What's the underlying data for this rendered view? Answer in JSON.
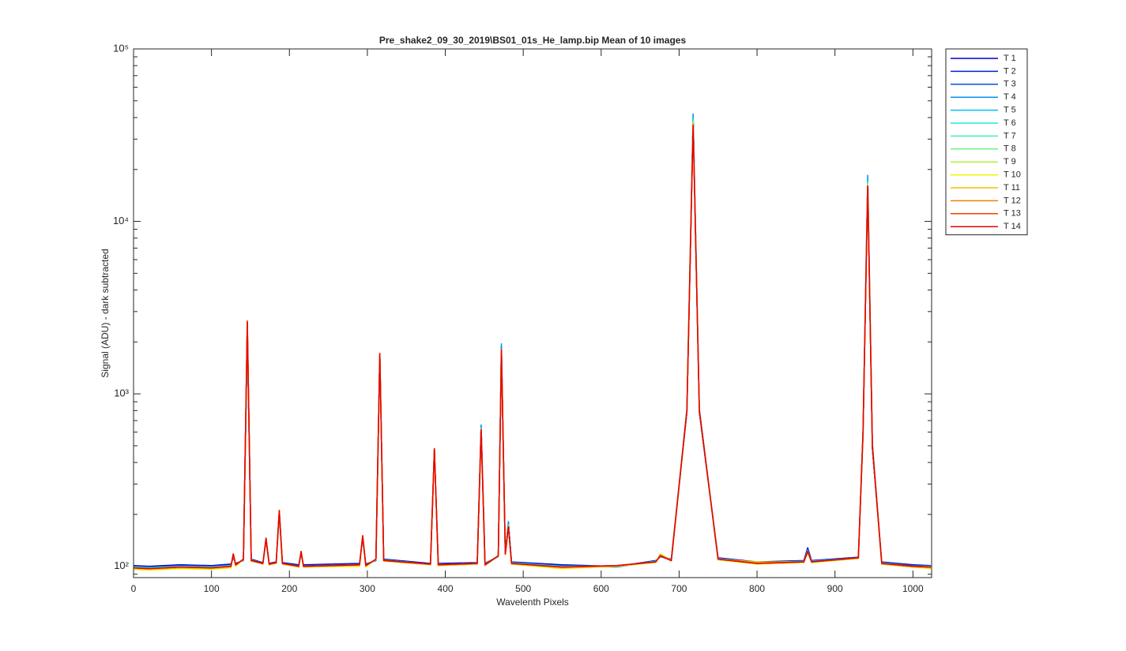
{
  "chart_data": {
    "type": "line",
    "title": "Pre_shake2_09_30_2019\\BS01_01s_He_lamp.bip  Mean of 10 images",
    "xlabel": "Wavelenth Pixels",
    "ylabel": "Signal (ADU) - dark subtracted",
    "yscale": "log",
    "grid": false,
    "legend_location": "east-outside",
    "xlim": [
      0,
      1024
    ],
    "xticks": [
      0,
      100,
      200,
      300,
      400,
      500,
      600,
      700,
      800,
      900,
      1000
    ],
    "ylim": [
      86,
      100000
    ],
    "yticks": [
      {
        "value": 100,
        "label": "10²"
      },
      {
        "value": 1000,
        "label": "10³"
      },
      {
        "value": 10000,
        "label": "10⁴"
      },
      {
        "value": 100000,
        "label": "10⁵"
      }
    ],
    "x": [
      0,
      20,
      60,
      100,
      125,
      128,
      131,
      141,
      146,
      151,
      166,
      170,
      174,
      183,
      187,
      191,
      212,
      215,
      218,
      290,
      294,
      298,
      311,
      316,
      321,
      381,
      386,
      391,
      441,
      446,
      451,
      468,
      472,
      477,
      481,
      485,
      550,
      620,
      670,
      676,
      690,
      710,
      718,
      726,
      750,
      800,
      860,
      865,
      870,
      930,
      936,
      942,
      948,
      960,
      1000,
      1023
    ],
    "series": [
      {
        "name": "T 1",
        "color": "#0000c8",
        "values": [
          101,
          100,
          102,
          101,
          103,
          112,
          104,
          108,
          2300,
          110,
          105,
          140,
          104,
          106,
          200,
          105,
          102,
          118,
          102,
          104,
          145,
          103,
          108,
          1650,
          110,
          104,
          470,
          104,
          105,
          640,
          104,
          114,
          1850,
          120,
          180,
          106,
          102,
          100,
          108,
          114,
          110,
          780,
          39000,
          780,
          112,
          106,
          108,
          128,
          108,
          113,
          580,
          17000,
          480,
          106,
          102,
          101
        ]
      },
      {
        "name": "T 2",
        "color": "#0020d8",
        "values": [
          100,
          99,
          101,
          100,
          102,
          114,
          103,
          109,
          2350,
          109,
          104,
          142,
          103,
          105,
          205,
          104,
          101,
          119,
          101,
          103,
          147,
          102,
          109,
          1660,
          109,
          103,
          472,
          103,
          104,
          645,
          103,
          114,
          1860,
          119,
          178,
          105,
          101,
          100,
          107,
          114,
          109,
          785,
          39500,
          785,
          111,
          105,
          107,
          126,
          107,
          112,
          585,
          17200,
          485,
          105,
          101,
          100
        ]
      },
      {
        "name": "T 3",
        "color": "#0050e0",
        "values": [
          100,
          99,
          100,
          100,
          101,
          115,
          103,
          109,
          2400,
          109,
          104,
          143,
          103,
          105,
          206,
          104,
          101,
          120,
          101,
          103,
          148,
          102,
          109,
          1680,
          109,
          103,
          475,
          103,
          104,
          650,
          103,
          114,
          1880,
          119,
          178,
          105,
          100,
          100,
          107,
          114,
          109,
          790,
          40000,
          790,
          111,
          105,
          107,
          125,
          107,
          112,
          590,
          17500,
          490,
          105,
          101,
          100
        ]
      },
      {
        "name": "T 4",
        "color": "#0090f0",
        "values": [
          99,
          98,
          100,
          99,
          101,
          116,
          102,
          109,
          2450,
          109,
          104,
          144,
          103,
          105,
          207,
          104,
          100,
          120,
          100,
          102,
          148,
          101,
          109,
          1700,
          109,
          103,
          478,
          102,
          104,
          660,
          103,
          115,
          1950,
          119,
          182,
          105,
          100,
          99,
          107,
          114,
          109,
          820,
          42000,
          820,
          111,
          105,
          107,
          124,
          107,
          112,
          620,
          18500,
          520,
          105,
          100,
          100
        ]
      },
      {
        "name": "T 5",
        "color": "#00c0f0",
        "values": [
          99,
          98,
          100,
          99,
          101,
          116,
          102,
          109,
          2450,
          108,
          104,
          144,
          103,
          105,
          207,
          104,
          100,
          120,
          100,
          102,
          148,
          101,
          109,
          1690,
          108,
          103,
          476,
          102,
          104,
          640,
          102,
          114,
          1820,
          118,
          175,
          105,
          100,
          100,
          107,
          116,
          109,
          800,
          40000,
          800,
          111,
          105,
          107,
          123,
          107,
          112,
          600,
          17500,
          500,
          105,
          100,
          100
        ]
      },
      {
        "name": "T 6",
        "color": "#20e8e0",
        "values": [
          99,
          98,
          100,
          99,
          101,
          117,
          102,
          109,
          2500,
          108,
          104,
          144,
          103,
          105,
          208,
          104,
          100,
          121,
          100,
          102,
          149,
          101,
          109,
          1690,
          108,
          103,
          477,
          102,
          104,
          630,
          102,
          114,
          1810,
          118,
          174,
          104,
          100,
          100,
          106,
          116,
          108,
          800,
          39000,
          800,
          110,
          105,
          106,
          122,
          106,
          112,
          600,
          17000,
          500,
          104,
          100,
          100
        ]
      },
      {
        "name": "T 7",
        "color": "#40f0b0",
        "values": [
          98,
          97,
          99,
          98,
          100,
          117,
          102,
          109,
          2500,
          108,
          104,
          145,
          103,
          105,
          208,
          104,
          100,
          121,
          100,
          102,
          149,
          101,
          109,
          1700,
          108,
          103,
          478,
          102,
          104,
          630,
          102,
          115,
          1800,
          118,
          173,
          104,
          99,
          101,
          106,
          118,
          108,
          800,
          38500,
          800,
          110,
          104,
          106,
          122,
          106,
          112,
          600,
          16800,
          500,
          104,
          100,
          99
        ]
      },
      {
        "name": "T 8",
        "color": "#70f080",
        "values": [
          98,
          97,
          99,
          98,
          100,
          117,
          102,
          110,
          2550,
          108,
          104,
          145,
          103,
          105,
          209,
          104,
          100,
          121,
          100,
          102,
          150,
          101,
          110,
          1700,
          108,
          103,
          479,
          102,
          104,
          625,
          102,
          115,
          1800,
          118,
          172,
          104,
          99,
          101,
          106,
          118,
          108,
          800,
          38000,
          800,
          110,
          104,
          106,
          122,
          106,
          112,
          600,
          16600,
          500,
          104,
          100,
          99
        ]
      },
      {
        "name": "T 9",
        "color": "#b0f040",
        "values": [
          97,
          96,
          98,
          97,
          99,
          117,
          101,
          110,
          2550,
          108,
          103,
          145,
          102,
          104,
          209,
          103,
          99,
          121,
          99,
          101,
          150,
          100,
          110,
          1700,
          108,
          102,
          480,
          101,
          103,
          620,
          101,
          115,
          1800,
          117,
          171,
          103,
          98,
          100,
          106,
          118,
          108,
          800,
          37500,
          800,
          110,
          104,
          106,
          120,
          106,
          111,
          600,
          16500,
          500,
          103,
          99,
          98
        ]
      },
      {
        "name": "T 10",
        "color": "#f0f000",
        "values": [
          96,
          95,
          97,
          96,
          98,
          117,
          100,
          110,
          2600,
          107,
          103,
          145,
          102,
          104,
          210,
          103,
          99,
          122,
          99,
          100,
          150,
          99,
          110,
          1700,
          107,
          102,
          480,
          101,
          103,
          620,
          101,
          115,
          1800,
          117,
          171,
          103,
          97,
          100,
          105,
          118,
          107,
          800,
          37000,
          800,
          109,
          103,
          105,
          120,
          105,
          111,
          600,
          16300,
          500,
          103,
          99,
          97
        ]
      },
      {
        "name": "T 11",
        "color": "#f0c000",
        "values": [
          97,
          96,
          98,
          97,
          99,
          118,
          101,
          110,
          2600,
          108,
          103,
          145,
          102,
          104,
          210,
          103,
          99,
          122,
          99,
          101,
          150,
          100,
          110,
          1700,
          108,
          102,
          480,
          101,
          103,
          620,
          101,
          115,
          1800,
          117,
          170,
          103,
          98,
          100,
          106,
          117,
          108,
          800,
          36800,
          800,
          110,
          106,
          106,
          121,
          106,
          111,
          600,
          16200,
          500,
          103,
          99,
          98
        ]
      },
      {
        "name": "T 12",
        "color": "#f08000",
        "values": [
          98,
          97,
          99,
          98,
          100,
          118,
          102,
          110,
          2650,
          108,
          104,
          145,
          103,
          105,
          210,
          104,
          100,
          122,
          100,
          102,
          150,
          101,
          110,
          1700,
          108,
          103,
          480,
          102,
          104,
          620,
          102,
          115,
          1800,
          118,
          170,
          104,
          99,
          101,
          106,
          116,
          108,
          800,
          36500,
          800,
          110,
          104,
          106,
          122,
          106,
          112,
          600,
          16100,
          500,
          104,
          100,
          99
        ]
      },
      {
        "name": "T 13",
        "color": "#f04000",
        "values": [
          98,
          97,
          99,
          98,
          100,
          118,
          102,
          110,
          2650,
          108,
          104,
          146,
          103,
          105,
          211,
          104,
          100,
          122,
          100,
          102,
          151,
          101,
          110,
          1720,
          108,
          103,
          482,
          102,
          104,
          620,
          102,
          115,
          1800,
          118,
          170,
          104,
          99,
          101,
          106,
          115,
          108,
          800,
          36200,
          800,
          110,
          104,
          106,
          122,
          106,
          112,
          600,
          16000,
          500,
          104,
          100,
          99
        ]
      },
      {
        "name": "T 14",
        "color": "#e80000",
        "values": [
          98,
          97,
          99,
          98,
          100,
          118,
          102,
          110,
          2600,
          108,
          104,
          145,
          103,
          105,
          210,
          104,
          100,
          122,
          100,
          102,
          150,
          101,
          110,
          1700,
          108,
          103,
          480,
          102,
          104,
          620,
          102,
          115,
          1800,
          118,
          170,
          104,
          99,
          101,
          106,
          115,
          108,
          800,
          36000,
          800,
          110,
          104,
          106,
          122,
          106,
          112,
          600,
          16000,
          500,
          104,
          100,
          99
        ]
      }
    ]
  }
}
